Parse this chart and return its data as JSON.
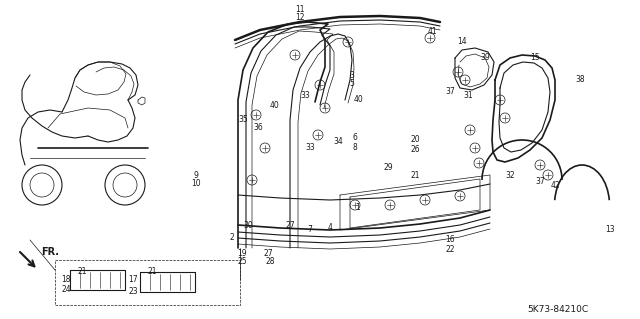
{
  "background_color": "#ffffff",
  "diagram_color": "#1a1a1a",
  "fig_width": 6.4,
  "fig_height": 3.19,
  "dpi": 100,
  "diagram_code": "5K73-84210C"
}
